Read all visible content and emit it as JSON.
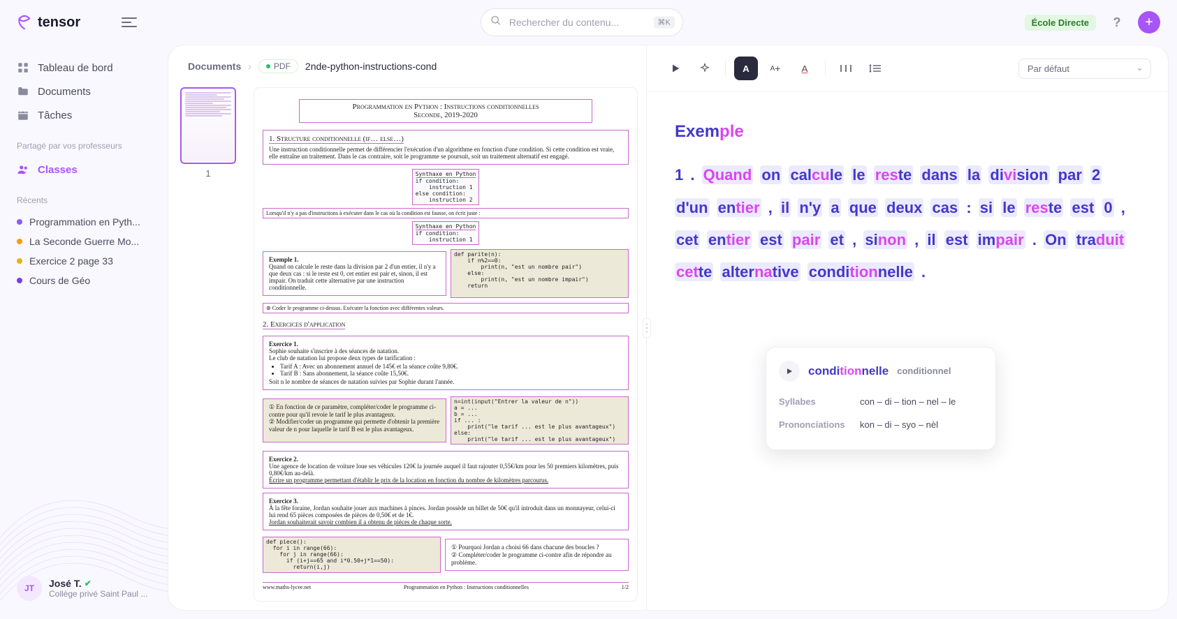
{
  "brand": "tensor",
  "search": {
    "placeholder": "Rechercher du contenu...",
    "kbd": "⌘K"
  },
  "topRight": {
    "badge": "École Directe",
    "help": "?",
    "plus": "+"
  },
  "sidebar": {
    "nav": [
      {
        "label": "Tableau de bord",
        "icon": "dashboard"
      },
      {
        "label": "Documents",
        "icon": "folder"
      },
      {
        "label": "Tâches",
        "icon": "calendar"
      }
    ],
    "sharedHeading": "Partagé par vos professeurs",
    "shared": [
      {
        "label": "Classes",
        "icon": "users",
        "active": true
      }
    ],
    "recentsHeading": "Récents",
    "recents": [
      {
        "label": "Programmation en Pyth...",
        "color": "#8b5cf6"
      },
      {
        "label": "La Seconde Guerre Mo...",
        "color": "#f59e0b"
      },
      {
        "label": "Exercice 2 page 33",
        "color": "#eab308"
      },
      {
        "label": "Cours de Géo",
        "color": "#7c3aed"
      }
    ]
  },
  "user": {
    "initials": "JT",
    "name": "José T.",
    "school": "Collège privé Saint Paul ..."
  },
  "breadcrumb": {
    "root": "Documents",
    "chipLabel": "PDF",
    "title": "2nde-python-instructions-cond"
  },
  "thumb": {
    "page": "1"
  },
  "doc": {
    "title": "Programmation en Python : Instructions conditionnelles",
    "subtitle": "Seconde, 2019-2020",
    "sec1Heading": "1. Structure conditionnelle (if… else…)",
    "sec1Body": "Une instruction conditionnelle permet de différencier l'exécution d'un algorithme en fonction d'une condition. Si cette condition est vraie, elle entraîne un traitement. Dans le cas contraire, soit le programme se poursuit, soit un traitement alternatif est engagé.",
    "syntaxHeader": "Synthaxe en Python",
    "syntax1": [
      "if condition:",
      "    instruction 1",
      "else condition:",
      "    instruction 2"
    ],
    "note1": "Lorsqu'il n'y a pas d'instructions à exécuter dans le cas où la condition est fausse, on écrit juste :",
    "syntax2": [
      "if condition:",
      "    instruction 1"
    ],
    "ex1Heading": "Exemple 1.",
    "ex1Body": "Quand on calcule le reste dans la division par 2 d'un entier, il n'y a que deux cas : si le reste est 0, cet entier est pair et, sinon, il est impair. On traduit cette alternative par une instruction conditionnelle.",
    "ex1Code": [
      "def parite(n):",
      "    if n%2==0:",
      "        print(n, \"est un nombre pair\")",
      "    else:",
      "        print(n, \"est un nombre impair\")",
      "    return"
    ],
    "ex1Task": "⊛ Coder le programme ci-dessus. Exécuter la fonction avec différentes valeurs.",
    "sec2Heading": "2. Exercices d'application",
    "exA": {
      "heading": "Exercice 1.",
      "lines": [
        "Sophie souhaite s'inscrire à des séances de natation.",
        "Le club de natation lui propose deux types de tarification :"
      ],
      "bullets": [
        "Tarif A : Avec un abonnement annuel de 145€ et la séance coûte 9,80€.",
        "Tarif B : Sans abonnement, la séance coûte 15,50€."
      ],
      "after": "Soit n le nombre de séances de natation suivies par Sophie durant l'année.",
      "q1": "En fonction de ce paramètre, compléter/coder le programme ci-contre pour qu'il revoie le tarif le plus avantageux.",
      "q2": "Modifier/coder un programme qui permette d'obtenir la première valeur de n pour laquelle le tarif B est le plus avantageux.",
      "code": [
        "n=int(input(\"Entrer la valeur de n\"))",
        "a = ...",
        "b = ...",
        "if ... :",
        "    print(\"le tarif ... est le plus avantageux\")",
        "else:",
        "    print(\"le tarif ... est le plus avantageux\")"
      ]
    },
    "exB": {
      "heading": "Exercice 2.",
      "body": "Une agence de location de voiture loue ses véhicules 120€ la journée auquel il faut rajouter 0,55€/km pour les 50 premiers kilomètres, puis 0,80€/km au-delà.",
      "task": "Écrire un programme permettant d'établir le prix de la location en fonction du nombre de kilomètres parcourus."
    },
    "exC": {
      "heading": "Exercice 3.",
      "body": "À la fête foraine, Jordan souhaite jouer aux machines à pinces. Jordan possède un billet de 50€ qu'il introduit dans un monnayeur, celui-ci lui rend 65 pièces composées de pièces de 0,50€ et de 1€.",
      "task": "Jordan souhaiterait savoir combien il a obtenu de pièces de chaque sorte.",
      "code": [
        "def piece():",
        "  for i in range(66):",
        "    for j in range(66):",
        "      if (i+j==65 and i*0.50+j*1==50):",
        "        return(i,j)"
      ],
      "q1": "Pourquoi Jordan a choisi 66 dans chacune des boucles ?",
      "q2": "Compléter/coder le programme ci-contre afin de répondre au problème."
    },
    "footerLeft": "www.maths-lycee.net",
    "footerCenter": "Programmation en Python : Instructions conditionnelles",
    "footerRight": "1/2"
  },
  "readerToolbar": {
    "preset": "Par défaut"
  },
  "reader": {
    "heading": [
      [
        "Exem",
        "ple"
      ]
    ],
    "body": [
      {
        "t": "plain",
        "v": "1"
      },
      {
        "t": "plain",
        "v": "."
      },
      {
        "t": "w",
        "s": [
          "Quand"
        ],
        "e": [
          0
        ]
      },
      {
        "t": "w",
        "s": [
          "on"
        ],
        "e": []
      },
      {
        "t": "w",
        "s": [
          "cal",
          "cu",
          "le"
        ],
        "e": [
          1
        ]
      },
      {
        "t": "w",
        "s": [
          "le"
        ],
        "e": []
      },
      {
        "t": "w",
        "s": [
          "res",
          "te"
        ],
        "e": [
          0
        ]
      },
      {
        "t": "w",
        "s": [
          "dans"
        ],
        "e": []
      },
      {
        "t": "w",
        "s": [
          "la"
        ],
        "e": []
      },
      {
        "t": "w",
        "s": [
          "di",
          "vi",
          "sion"
        ],
        "e": [
          1
        ]
      },
      {
        "t": "w",
        "s": [
          "par"
        ],
        "e": []
      },
      {
        "t": "w",
        "s": [
          "2"
        ],
        "e": []
      },
      {
        "t": "w",
        "s": [
          "d'un"
        ],
        "e": []
      },
      {
        "t": "w",
        "s": [
          "en",
          "tier"
        ],
        "e": [
          1
        ]
      },
      {
        "t": "plain",
        "v": ","
      },
      {
        "t": "w",
        "s": [
          "il"
        ],
        "e": []
      },
      {
        "t": "w",
        "s": [
          "n'y"
        ],
        "e": []
      },
      {
        "t": "w",
        "s": [
          "a"
        ],
        "e": []
      },
      {
        "t": "w",
        "s": [
          "que"
        ],
        "e": []
      },
      {
        "t": "w",
        "s": [
          "deux"
        ],
        "e": []
      },
      {
        "t": "w",
        "s": [
          "cas"
        ],
        "e": []
      },
      {
        "t": "plain",
        "v": ":"
      },
      {
        "t": "w",
        "s": [
          "si"
        ],
        "e": []
      },
      {
        "t": "w",
        "s": [
          "le"
        ],
        "e": []
      },
      {
        "t": "w",
        "s": [
          "res",
          "te"
        ],
        "e": [
          0
        ]
      },
      {
        "t": "w",
        "s": [
          "est"
        ],
        "e": []
      },
      {
        "t": "w",
        "s": [
          "0"
        ],
        "e": []
      },
      {
        "t": "plain",
        "v": ","
      },
      {
        "t": "w",
        "s": [
          "cet"
        ],
        "e": []
      },
      {
        "t": "w",
        "s": [
          "en",
          "tier"
        ],
        "e": [
          1
        ]
      },
      {
        "t": "w",
        "s": [
          "est"
        ],
        "e": []
      },
      {
        "t": "w",
        "s": [
          "pair"
        ],
        "e": [
          0
        ]
      },
      {
        "t": "w",
        "s": [
          "et"
        ],
        "e": []
      },
      {
        "t": "plain",
        "v": ","
      },
      {
        "t": "w",
        "s": [
          "si",
          "non"
        ],
        "e": [
          1
        ]
      },
      {
        "t": "plain",
        "v": ","
      },
      {
        "t": "w",
        "s": [
          "il"
        ],
        "e": []
      },
      {
        "t": "w",
        "s": [
          "est"
        ],
        "e": []
      },
      {
        "t": "w",
        "s": [
          "im",
          "pair"
        ],
        "e": [
          1
        ]
      },
      {
        "t": "plain",
        "v": "."
      },
      {
        "t": "w",
        "s": [
          "On"
        ],
        "e": []
      },
      {
        "t": "w",
        "s": [
          "tra",
          "duit"
        ],
        "e": [
          1
        ]
      },
      {
        "t": "w",
        "s": [
          "cet",
          "te"
        ],
        "e": [
          0
        ]
      },
      {
        "t": "w",
        "s": [
          "al",
          "ter",
          "na",
          "tive"
        ],
        "e": [
          2
        ]
      },
      {
        "t": "w",
        "s": [
          "con",
          "di",
          "tion",
          "nel",
          "le"
        ],
        "e": [
          2
        ]
      },
      {
        "t": "plain",
        "v": "."
      }
    ]
  },
  "popover": {
    "word": [
      "con",
      "di",
      "tion",
      "nel",
      "le"
    ],
    "wordEm": [
      2
    ],
    "raw": "conditionnel",
    "rows": [
      {
        "label": "Syllabes",
        "value": "con – di – tion – nel – le"
      },
      {
        "label": "Prononciations",
        "value": "kon – di – syo – nèl"
      }
    ]
  }
}
